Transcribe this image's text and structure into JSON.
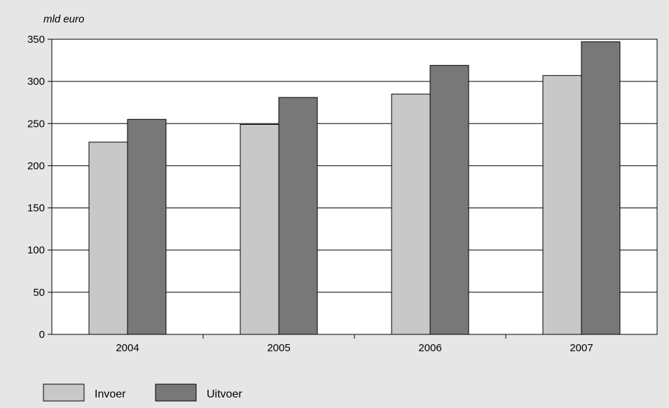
{
  "chart_data": {
    "type": "bar",
    "ylabel": "mld euro",
    "categories": [
      "2004",
      "2005",
      "2006",
      "2007"
    ],
    "series": [
      {
        "name": "Invoer",
        "color": "#c8c8c8",
        "values": [
          228,
          249,
          285,
          307
        ]
      },
      {
        "name": "Uitvoer",
        "color": "#787878",
        "values": [
          255,
          281,
          319,
          347
        ]
      }
    ],
    "ylim": [
      0,
      350
    ],
    "yticks": [
      0,
      50,
      100,
      150,
      200,
      250,
      300,
      350
    ],
    "grid": true,
    "legend": "bottom-left"
  }
}
